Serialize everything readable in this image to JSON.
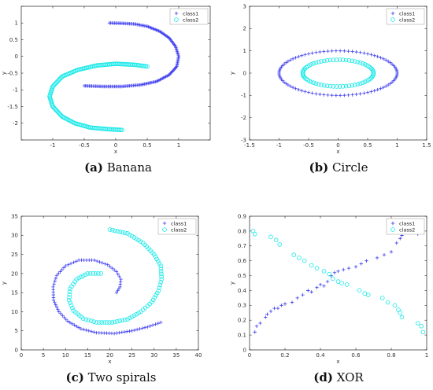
{
  "colors": {
    "class1": "#3d3df0",
    "class2": "#18e8e8"
  },
  "chart_data": [
    {
      "id": "banana",
      "type": "scatter",
      "title": "",
      "caption_letter": "(a)",
      "caption_text": "Banana",
      "xlabel": "x",
      "ylabel": "y",
      "xlim": [
        -1.5,
        1.5
      ],
      "ylim": [
        -2.5,
        1.5
      ],
      "xticks": [
        -1,
        -0.5,
        0,
        0.5,
        1
      ],
      "xtick_labels": [
        "-1",
        "-0.5",
        "0",
        "0.5",
        "1"
      ],
      "yticks": [
        -2.5,
        -2,
        -1.5,
        -1,
        -0.5,
        0,
        0.5,
        1,
        1.5
      ],
      "ytick_labels": [
        "",
        "-2",
        "-1.5",
        "-1",
        "-0.5",
        "0",
        "0.5",
        "1",
        ""
      ],
      "legend_position": "top-right",
      "series": [
        {
          "name": "class1",
          "marker": "plus",
          "points": [
            [
              -0.1,
              1.0
            ],
            [
              0.1,
              0.99
            ],
            [
              0.3,
              0.97
            ],
            [
              0.5,
              0.9
            ],
            [
              0.7,
              0.75
            ],
            [
              0.85,
              0.55
            ],
            [
              0.95,
              0.3
            ],
            [
              1.0,
              0.0
            ],
            [
              0.97,
              -0.3
            ],
            [
              0.85,
              -0.55
            ],
            [
              0.65,
              -0.75
            ],
            [
              0.4,
              -0.85
            ],
            [
              0.1,
              -0.9
            ],
            [
              -0.2,
              -0.9
            ],
            [
              -0.5,
              -0.88
            ]
          ]
        },
        {
          "name": "class2",
          "marker": "circle",
          "points": [
            [
              0.5,
              -0.3
            ],
            [
              0.3,
              -0.25
            ],
            [
              0.0,
              -0.22
            ],
            [
              -0.3,
              -0.27
            ],
            [
              -0.6,
              -0.4
            ],
            [
              -0.85,
              -0.6
            ],
            [
              -1.0,
              -0.9
            ],
            [
              -1.05,
              -1.2
            ],
            [
              -1.0,
              -1.5
            ],
            [
              -0.85,
              -1.8
            ],
            [
              -0.65,
              -2.0
            ],
            [
              -0.4,
              -2.13
            ],
            [
              -0.1,
              -2.18
            ],
            [
              0.1,
              -2.2
            ]
          ]
        }
      ]
    },
    {
      "id": "circle",
      "type": "scatter",
      "title": "",
      "caption_letter": "(b)",
      "caption_text": "Circle",
      "xlabel": "x",
      "ylabel": "y",
      "xlim": [
        -1.5,
        1.5
      ],
      "ylim": [
        -3,
        3
      ],
      "xticks": [
        -1.5,
        -1,
        -0.5,
        0,
        0.5,
        1,
        1.5
      ],
      "xtick_labels": [
        "-1.5",
        "-1",
        "-0.5",
        "0",
        "0.5",
        "1",
        "1.5"
      ],
      "yticks": [
        -3,
        -2,
        -1,
        0,
        1,
        2,
        3
      ],
      "ytick_labels": [
        "-3",
        "-2",
        "-1",
        "0",
        "1",
        "2",
        "3"
      ],
      "legend_position": "top-right",
      "series": [
        {
          "name": "class1",
          "marker": "plus",
          "shape": "circle",
          "radius": 1.0,
          "count": 90
        },
        {
          "name": "class2",
          "marker": "circle",
          "shape": "circle",
          "radius": 0.6,
          "count": 70
        }
      ]
    },
    {
      "id": "spirals",
      "type": "scatter",
      "title": "",
      "caption_letter": "(c)",
      "caption_text": "Two spirals",
      "xlabel": "x",
      "ylabel": "y",
      "xlim": [
        0,
        40
      ],
      "ylim": [
        0,
        35
      ],
      "xticks": [
        0,
        5,
        10,
        15,
        20,
        25,
        30,
        35,
        40
      ],
      "xtick_labels": [
        "0",
        "5",
        "10",
        "15",
        "20",
        "25",
        "30",
        "35",
        "40"
      ],
      "yticks": [
        0,
        5,
        10,
        15,
        20,
        25,
        30,
        35
      ],
      "ytick_labels": [
        "0",
        "5",
        "10",
        "15",
        "20",
        "25",
        "30",
        "35"
      ],
      "legend_position": "top-right",
      "series": [
        {
          "name": "class1",
          "marker": "plus",
          "points": [
            [
              21.5,
              15.0
            ],
            [
              22.3,
              16.5
            ],
            [
              22.5,
              18.5
            ],
            [
              21.5,
              20.5
            ],
            [
              19.5,
              22.3
            ],
            [
              16.5,
              23.5
            ],
            [
              13.0,
              23.5
            ],
            [
              10.0,
              22.0
            ],
            [
              8.0,
              19.5
            ],
            [
              7.2,
              16.5
            ],
            [
              7.3,
              13.0
            ],
            [
              8.5,
              10.0
            ],
            [
              10.5,
              7.5
            ],
            [
              13.5,
              5.5
            ],
            [
              17.0,
              4.5
            ],
            [
              21.0,
              4.3
            ],
            [
              25.0,
              5.0
            ],
            [
              28.5,
              6.0
            ],
            [
              31.5,
              7.2
            ]
          ]
        },
        {
          "name": "class2",
          "marker": "circle",
          "points": [
            [
              18.0,
              20.0
            ],
            [
              15.0,
              20.0
            ],
            [
              12.5,
              18.5
            ],
            [
              11.0,
              16.0
            ],
            [
              10.8,
              13.0
            ],
            [
              11.8,
              10.3
            ],
            [
              14.0,
              8.2
            ],
            [
              17.0,
              7.2
            ],
            [
              20.5,
              7.2
            ],
            [
              24.0,
              8.0
            ],
            [
              27.0,
              10.0
            ],
            [
              29.5,
              12.5
            ],
            [
              31.0,
              15.5
            ],
            [
              31.7,
              18.5
            ],
            [
              31.5,
              22.0
            ],
            [
              30.0,
              25.0
            ],
            [
              27.5,
              28.0
            ],
            [
              24.0,
              30.5
            ],
            [
              20.0,
              31.5
            ]
          ]
        }
      ]
    },
    {
      "id": "xor",
      "type": "scatter",
      "title": "",
      "caption_letter": "(d)",
      "caption_text": "XOR",
      "xlabel": "x",
      "ylabel": "y",
      "xlim": [
        0,
        1
      ],
      "ylim": [
        0,
        0.9
      ],
      "xticks": [
        0,
        0.2,
        0.4,
        0.6,
        0.8,
        1
      ],
      "xtick_labels": [
        "0",
        "0.2",
        "0.4",
        "0.6",
        "0.8",
        "1"
      ],
      "yticks": [
        0,
        0.1,
        0.2,
        0.3,
        0.4,
        0.5,
        0.6,
        0.7,
        0.8,
        0.9
      ],
      "ytick_labels": [
        "0",
        "0.1",
        "0.2",
        "0.3",
        "0.4",
        "0.5",
        "0.6",
        "0.7",
        "0.8",
        "0.9"
      ],
      "legend_position": "top-right",
      "series": [
        {
          "name": "class1",
          "marker": "plus",
          "points": [
            [
              0.03,
              0.12
            ],
            [
              0.04,
              0.16
            ],
            [
              0.06,
              0.18
            ],
            [
              0.09,
              0.22
            ],
            [
              0.1,
              0.24
            ],
            [
              0.12,
              0.26
            ],
            [
              0.14,
              0.28
            ],
            [
              0.16,
              0.28
            ],
            [
              0.18,
              0.3
            ],
            [
              0.2,
              0.31
            ],
            [
              0.24,
              0.32
            ],
            [
              0.27,
              0.35
            ],
            [
              0.3,
              0.37
            ],
            [
              0.33,
              0.4
            ],
            [
              0.35,
              0.39
            ],
            [
              0.38,
              0.42
            ],
            [
              0.4,
              0.44
            ],
            [
              0.42,
              0.43
            ],
            [
              0.44,
              0.46
            ],
            [
              0.46,
              0.5
            ],
            [
              0.48,
              0.52
            ],
            [
              0.5,
              0.53
            ],
            [
              0.53,
              0.54
            ],
            [
              0.56,
              0.55
            ],
            [
              0.6,
              0.56
            ],
            [
              0.63,
              0.58
            ],
            [
              0.66,
              0.6
            ],
            [
              0.72,
              0.62
            ],
            [
              0.76,
              0.64
            ],
            [
              0.8,
              0.66
            ],
            [
              0.83,
              0.72
            ],
            [
              0.85,
              0.75
            ],
            [
              0.86,
              0.77
            ],
            [
              0.95,
              0.78
            ],
            [
              0.97,
              0.8
            ]
          ]
        },
        {
          "name": "class2",
          "marker": "circle",
          "points": [
            [
              0.02,
              0.8
            ],
            [
              0.03,
              0.78
            ],
            [
              0.12,
              0.76
            ],
            [
              0.15,
              0.74
            ],
            [
              0.17,
              0.71
            ],
            [
              0.25,
              0.64
            ],
            [
              0.28,
              0.62
            ],
            [
              0.31,
              0.6
            ],
            [
              0.35,
              0.57
            ],
            [
              0.38,
              0.55
            ],
            [
              0.42,
              0.53
            ],
            [
              0.45,
              0.51
            ],
            [
              0.47,
              0.48
            ],
            [
              0.5,
              0.46
            ],
            [
              0.52,
              0.45
            ],
            [
              0.55,
              0.44
            ],
            [
              0.62,
              0.4
            ],
            [
              0.65,
              0.38
            ],
            [
              0.67,
              0.37
            ],
            [
              0.75,
              0.35
            ],
            [
              0.78,
              0.32
            ],
            [
              0.82,
              0.3
            ],
            [
              0.84,
              0.27
            ],
            [
              0.85,
              0.25
            ],
            [
              0.86,
              0.22
            ],
            [
              0.95,
              0.18
            ],
            [
              0.97,
              0.16
            ],
            [
              0.98,
              0.12
            ]
          ]
        }
      ]
    }
  ]
}
